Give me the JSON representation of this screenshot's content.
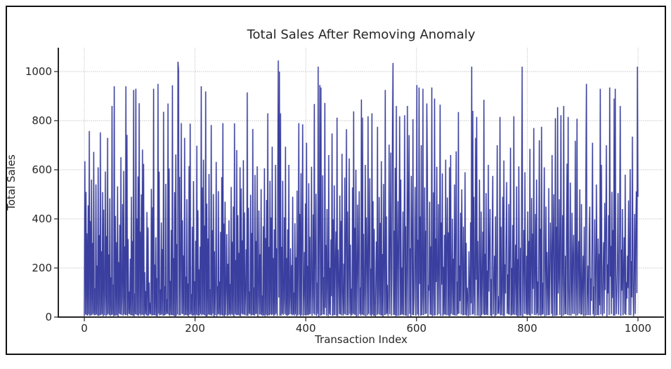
{
  "chart_data": {
    "type": "line",
    "title": "Total Sales After Removing Anomaly",
    "xlabel": "Transaction Index",
    "ylabel": "Total Sales",
    "xticks": [
      0,
      200,
      400,
      600,
      800,
      1000
    ],
    "yticks": [
      0,
      200,
      400,
      600,
      800,
      1000
    ],
    "xlim": [
      -47,
      1047
    ],
    "ylim": [
      0,
      1097
    ],
    "x_range": [
      0,
      1000
    ],
    "grid": true,
    "grid_color": "#c9c9c9",
    "line_color": "#3a3f9f",
    "spine_color": "#262626",
    "frame_color": "#111111",
    "background": "#ffffff",
    "legend": "none",
    "values": [
      4,
      635,
      11,
      510,
      8,
      341,
      6,
      455,
      12,
      758,
      5,
      391,
      7,
      560,
      9,
      302,
      13,
      673,
      7,
      118,
      8,
      540,
      11,
      210,
      6,
      610,
      5,
      334,
      7,
      752,
      9,
      268,
      12,
      509,
      4,
      438,
      8,
      93,
      593,
      5,
      330,
      8,
      730,
      13,
      255,
      9,
      484,
      5,
      162,
      9,
      860,
      10,
      133,
      4,
      940,
      6,
      412,
      6,
      305,
      8,
      532,
      3,
      224,
      14,
      376,
      11,
      651,
      9,
      81,
      460,
      6,
      595,
      12,
      288,
      7,
      940,
      9,
      742,
      5,
      318,
      13,
      104,
      11,
      238,
      7,
      490,
      8,
      310,
      5,
      925,
      4,
      96,
      12,
      930,
      10,
      402,
      7,
      573,
      5,
      871,
      13,
      348,
      6,
      500,
      10,
      682,
      9,
      624,
      4,
      183,
      12,
      106,
      8,
      428,
      5,
      365,
      6,
      141,
      12,
      58,
      11,
      522,
      6,
      447,
      8,
      930,
      8,
      214,
      7,
      325,
      4,
      159,
      4,
      950,
      14,
      592,
      7,
      113,
      9,
      385,
      11,
      277,
      6,
      836,
      6,
      126,
      9,
      543,
      12,
      74,
      13,
      870,
      10,
      605,
      5,
      148,
      9,
      355,
      7,
      944,
      8,
      240,
      5,
      509,
      3,
      662,
      5,
      298,
      11,
      1040,
      1005,
      7,
      571,
      7,
      208,
      790,
      13,
      394,
      12,
      251,
      6,
      730,
      8,
      165,
      9,
      480,
      6,
      137,
      4,
      615,
      10,
      788,
      12,
      94,
      8,
      368,
      5,
      554,
      8,
      146,
      4,
      311,
      10,
      698,
      7,
      435,
      5,
      195,
      7,
      287,
      13,
      940,
      7,
      528,
      11,
      641,
      9,
      373,
      6,
      919,
      3,
      462,
      5,
      320,
      11,
      583,
      9,
      114,
      8,
      782,
      6,
      354,
      14,
      501,
      3,
      268,
      8,
      117,
      632,
      4,
      126,
      10,
      513,
      12,
      145,
      6,
      347,
      10,
      570,
      7,
      790,
      5,
      381,
      4,
      470,
      9,
      109,
      338,
      5,
      217,
      7,
      394,
      11,
      135,
      6,
      530,
      12,
      307,
      8,
      450,
      3,
      789,
      13,
      232,
      8,
      680,
      8,
      415,
      9,
      262,
      5,
      610,
      4,
      524,
      14,
      313,
      10,
      639,
      11,
      426,
      7,
      102,
      276,
      6,
      915,
      5,
      445,
      13,
      105,
      12,
      498,
      6,
      343,
      9,
      766,
      8,
      121,
      6,
      579,
      12,
      310,
      13,
      614,
      3,
      89,
      434,
      10,
      256,
      11,
      521,
      8,
      88,
      5,
      370,
      7,
      606,
      4,
      322,
      10,
      477,
      5,
      830,
      7,
      286,
      7,
      555,
      12,
      406,
      8,
      694,
      11,
      241,
      4,
      357,
      9,
      620,
      14,
      280,
      5,
      544,
      1045,
      80,
      1000,
      6,
      830,
      6,
      286,
      13,
      555,
      9,
      70,
      406,
      13,
      694,
      8,
      241,
      5,
      357,
      8,
      620,
      11,
      81,
      280,
      12,
      212,
      7,
      490,
      10,
      100,
      6,
      382,
      12,
      244,
      4,
      515,
      7,
      184,
      790,
      10,
      420,
      4,
      586,
      8,
      300,
      785,
      5,
      90,
      265,
      8,
      463,
      6,
      710,
      9,
      209,
      7,
      545,
      11,
      327,
      12,
      150,
      612,
      5,
      97,
      418,
      14,
      868,
      9,
      235,
      502,
      5,
      141,
      13,
      1020,
      3,
      330,
      945,
      6,
      935,
      8,
      108,
      577,
      11,
      163,
      10,
      872,
      38,
      294,
      6,
      440,
      125,
      4,
      660,
      12,
      201,
      8,
      316,
      85,
      748,
      5,
      398,
      7,
      536,
      9,
      230,
      349,
      5,
      812,
      4,
      275,
      153,
      12,
      495,
      11,
      392,
      7,
      665,
      101,
      6,
      218,
      13,
      568,
      10,
      312,
      765,
      7,
      430,
      8,
      188,
      646,
      13,
      295,
      5,
      116,
      8,
      528,
      14,
      838,
      10,
      364,
      9,
      600,
      3,
      173,
      458,
      5,
      268,
      513,
      12,
      121,
      6,
      886,
      11,
      812,
      9,
      339,
      6,
      110,
      620,
      4,
      406,
      232,
      7,
      818,
      13,
      284,
      565,
      7,
      197,
      4,
      830,
      11,
      472,
      5,
      359,
      8,
      5,
      160,
      308,
      8,
      775,
      12,
      115,
      489,
      10,
      384,
      7,
      635,
      6,
      257,
      3,
      542,
      183,
      8,
      925,
      10,
      410,
      14,
      131,
      5,
      106,
      702,
      12,
      290,
      670,
      6,
      178,
      770,
      1035,
      9,
      352,
      9,
      608,
      4,
      860,
      5,
      250,
      472,
      5,
      325,
      818,
      7,
      560,
      10,
      202,
      11,
      430,
      7,
      274,
      822,
      7,
      370,
      5,
      192,
      860,
      4,
      490,
      741,
      13,
      280,
      3,
      575,
      346,
      9,
      806,
      8,
      78,
      222,
      530,
      6,
      169,
      945,
      11,
      315,
      5,
      935,
      135,
      410,
      6,
      700,
      8,
      86,
      930,
      8,
      146,
      528,
      12,
      352,
      14,
      870,
      615,
      3,
      130,
      108,
      470,
      10,
      288,
      9,
      935,
      4,
      110,
      508,
      6,
      890,
      7,
      320,
      143,
      612,
      7,
      175,
      460,
      12,
      240,
      865,
      5,
      385,
      132,
      585,
      5,
      205,
      10,
      335,
      11,
      641,
      7,
      290,
      487,
      8,
      345,
      4,
      610,
      5,
      660,
      13,
      118,
      400,
      9,
      238,
      8,
      540,
      6,
      312,
      675,
      6,
      145,
      12,
      835,
      14,
      210,
      65,
      425,
      11,
      520,
      250,
      7,
      368,
      8,
      150,
      590,
      9,
      302,
      5,
      120,
      78,
      4,
      268,
      129,
      7,
      386,
      56,
      1020,
      10,
      840,
      12,
      490,
      95,
      6,
      730,
      152,
      815,
      6,
      310,
      99,
      5,
      560,
      205,
      3,
      430,
      8,
      165,
      348,
      12,
      885,
      8,
      258,
      9,
      505,
      10,
      190,
      7,
      620,
      104,
      290,
      440,
      6,
      155,
      4,
      335,
      575,
      11,
      138,
      250,
      4,
      410,
      7,
      185,
      700,
      13,
      86,
      13,
      58,
      815,
      7,
      368,
      8,
      110,
      490,
      5,
      638,
      5,
      215,
      96,
      322,
      550,
      14,
      174,
      11,
      460,
      10,
      260,
      690,
      6,
      200,
      8,
      375,
      12,
      818,
      9,
      150,
      295,
      9,
      532,
      4,
      236,
      4,
      614,
      170,
      5,
      282,
      6,
      468,
      1020,
      3,
      196,
      355,
      13,
      590,
      141,
      12,
      250,
      7,
      430,
      11,
      310,
      7,
      685,
      5,
      208,
      485,
      13,
      340,
      115,
      770,
      9,
      178,
      420,
      7,
      560,
      14,
      145,
      6,
      286,
      720,
      8,
      360,
      5,
      775,
      10,
      140,
      11,
      330,
      610,
      4,
      190,
      450,
      6,
      265,
      120,
      8,
      525,
      8,
      160,
      385,
      230,
      13,
      660,
      4,
      298,
      500,
      5,
      148,
      810,
      5,
      368,
      7,
      855,
      96,
      158,
      480,
      9,
      300,
      822,
      3,
      195,
      415,
      6,
      860,
      135,
      11,
      250,
      12,
      340,
      625,
      9,
      815,
      108,
      7,
      188,
      548,
      6,
      110,
      425,
      13,
      255,
      335,
      12,
      165,
      718,
      5,
      135,
      808,
      7,
      222,
      310,
      14,
      520,
      86,
      10,
      460,
      10,
      118,
      250,
      4,
      368,
      140,
      5,
      590,
      950,
      8,
      102,
      210,
      8,
      335,
      450,
      7,
      158,
      66,
      282,
      710,
      11,
      125,
      4,
      398,
      175,
      6,
      540,
      230,
      9,
      320,
      7,
      258,
      48,
      930,
      11,
      620,
      135,
      5,
      190,
      305,
      14,
      465,
      110,
      366,
      700,
      3,
      215,
      96,
      415,
      9,
      935,
      165,
      290,
      12,
      510,
      78,
      355,
      6,
      890,
      6,
      930,
      170,
      12,
      120,
      248,
      505,
      10,
      160,
      388,
      860,
      5,
      275,
      108,
      440,
      7,
      195,
      325,
      13,
      580,
      9,
      142,
      75,
      250,
      118,
      475,
      8,
      308,
      602,
      8,
      228,
      80,
      735,
      152,
      4,
      190,
      420,
      13,
      345,
      512,
      98,
      1020,
      490
    ]
  }
}
